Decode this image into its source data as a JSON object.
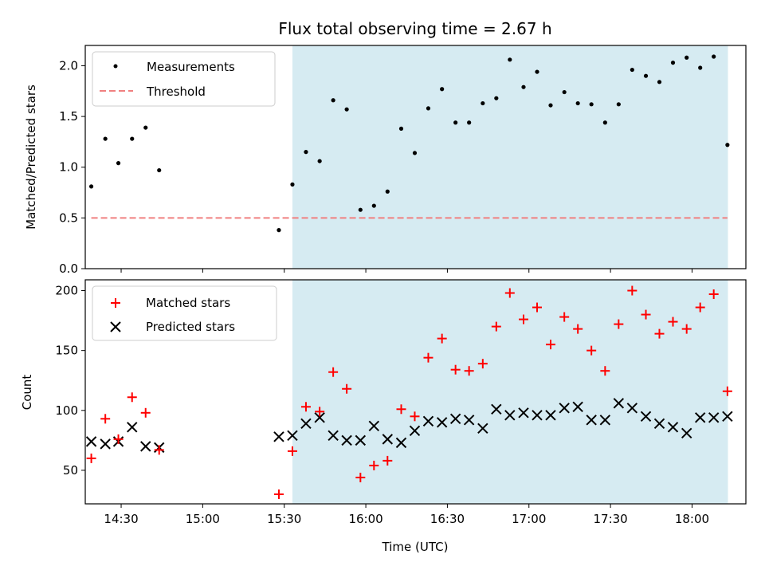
{
  "chart_data": [
    {
      "type": "scatter",
      "title": "Flux total observing time = 2.67 h",
      "xlabel": "",
      "ylabel": "Matched/Predicted stars",
      "xlim": [
        14.28,
        18.33
      ],
      "ylim": [
        0.0,
        2.2
      ],
      "yticks": [
        0.0,
        0.5,
        1.0,
        1.5,
        2.0
      ],
      "ytick_labels": [
        "0.0",
        "0.5",
        "1.0",
        "1.5",
        "2.0"
      ],
      "shaded_region": [
        15.55,
        18.22
      ],
      "legend": {
        "position": "top-left",
        "entries": [
          "Measurements",
          "Threshold"
        ]
      },
      "series": [
        {
          "name": "Measurements",
          "marker": "dot",
          "color": "#000000",
          "x": [
            14.317,
            14.403,
            14.483,
            14.567,
            14.65,
            14.733,
            15.467,
            15.55,
            15.633,
            15.717,
            15.8,
            15.883,
            15.967,
            16.05,
            16.133,
            16.217,
            16.3,
            16.383,
            16.467,
            16.55,
            16.633,
            16.717,
            16.8,
            16.883,
            16.967,
            17.05,
            17.133,
            17.217,
            17.3,
            17.383,
            17.467,
            17.55,
            17.633,
            17.717,
            17.8,
            17.883,
            17.967,
            18.05,
            18.133,
            18.217
          ],
          "y": [
            0.81,
            1.28,
            1.04,
            1.28,
            1.39,
            0.97,
            0.38,
            0.83,
            1.15,
            1.06,
            1.66,
            1.57,
            0.58,
            0.62,
            0.76,
            1.38,
            1.14,
            1.58,
            1.77,
            1.44,
            1.44,
            1.63,
            1.68,
            2.06,
            1.79,
            1.94,
            1.61,
            1.74,
            1.63,
            1.62,
            1.44,
            1.62,
            1.96,
            1.9,
            1.84,
            2.03,
            2.08,
            1.98,
            2.09,
            1.22
          ]
        },
        {
          "name": "Threshold",
          "type": "line",
          "style": "dashed",
          "color": "#f08080",
          "x": [
            14.317,
            18.217
          ],
          "y": [
            0.5,
            0.5
          ]
        }
      ]
    },
    {
      "type": "scatter",
      "title": "",
      "xlabel": "Time (UTC)",
      "ylabel": "Count",
      "xlim": [
        14.28,
        18.33
      ],
      "ylim": [
        22,
        209
      ],
      "yticks": [
        50,
        100,
        150,
        200
      ],
      "ytick_labels": [
        "50",
        "100",
        "150",
        "200"
      ],
      "xticks": [
        14.5,
        15.0,
        15.5,
        16.0,
        16.5,
        17.0,
        17.5,
        18.0
      ],
      "xtick_labels": [
        "14:30",
        "15:00",
        "15:30",
        "16:00",
        "16:30",
        "17:00",
        "17:30",
        "18:00"
      ],
      "shaded_region": [
        15.55,
        18.22
      ],
      "legend": {
        "position": "top-left",
        "entries": [
          "Matched stars",
          "Predicted stars"
        ]
      },
      "series": [
        {
          "name": "Matched stars",
          "marker": "plus",
          "color": "#ff0000",
          "x": [
            14.317,
            14.403,
            14.483,
            14.567,
            14.65,
            14.733,
            15.467,
            15.55,
            15.633,
            15.717,
            15.8,
            15.883,
            15.967,
            16.05,
            16.133,
            16.217,
            16.3,
            16.383,
            16.467,
            16.55,
            16.633,
            16.717,
            16.8,
            16.883,
            16.967,
            17.05,
            17.133,
            17.217,
            17.3,
            17.383,
            17.467,
            17.55,
            17.633,
            17.717,
            17.8,
            17.883,
            17.967,
            18.05,
            18.133,
            18.217
          ],
          "y": [
            60,
            93,
            76,
            111,
            98,
            67,
            30,
            66,
            103,
            99,
            132,
            118,
            44,
            54,
            58,
            101,
            95,
            144,
            160,
            134,
            133,
            139,
            170,
            198,
            176,
            186,
            155,
            178,
            168,
            150,
            133,
            172,
            200,
            180,
            164,
            174,
            168,
            186,
            197,
            116
          ]
        },
        {
          "name": "Predicted stars",
          "marker": "x",
          "color": "#000000",
          "x": [
            14.317,
            14.403,
            14.483,
            14.567,
            14.65,
            14.733,
            15.467,
            15.55,
            15.633,
            15.717,
            15.8,
            15.883,
            15.967,
            16.05,
            16.133,
            16.217,
            16.3,
            16.383,
            16.467,
            16.55,
            16.633,
            16.717,
            16.8,
            16.883,
            16.967,
            17.05,
            17.133,
            17.217,
            17.3,
            17.383,
            17.467,
            17.55,
            17.633,
            17.717,
            17.8,
            17.883,
            17.967,
            18.05,
            18.133,
            18.217
          ],
          "y": [
            74,
            72,
            74,
            86,
            70,
            69,
            78,
            79,
            89,
            94,
            79,
            75,
            75,
            87,
            76,
            73,
            83,
            91,
            90,
            93,
            92,
            85,
            101,
            96,
            98,
            96,
            96,
            102,
            103,
            92,
            92,
            106,
            102,
            95,
            89,
            86,
            81,
            94,
            94,
            95
          ]
        }
      ]
    }
  ]
}
